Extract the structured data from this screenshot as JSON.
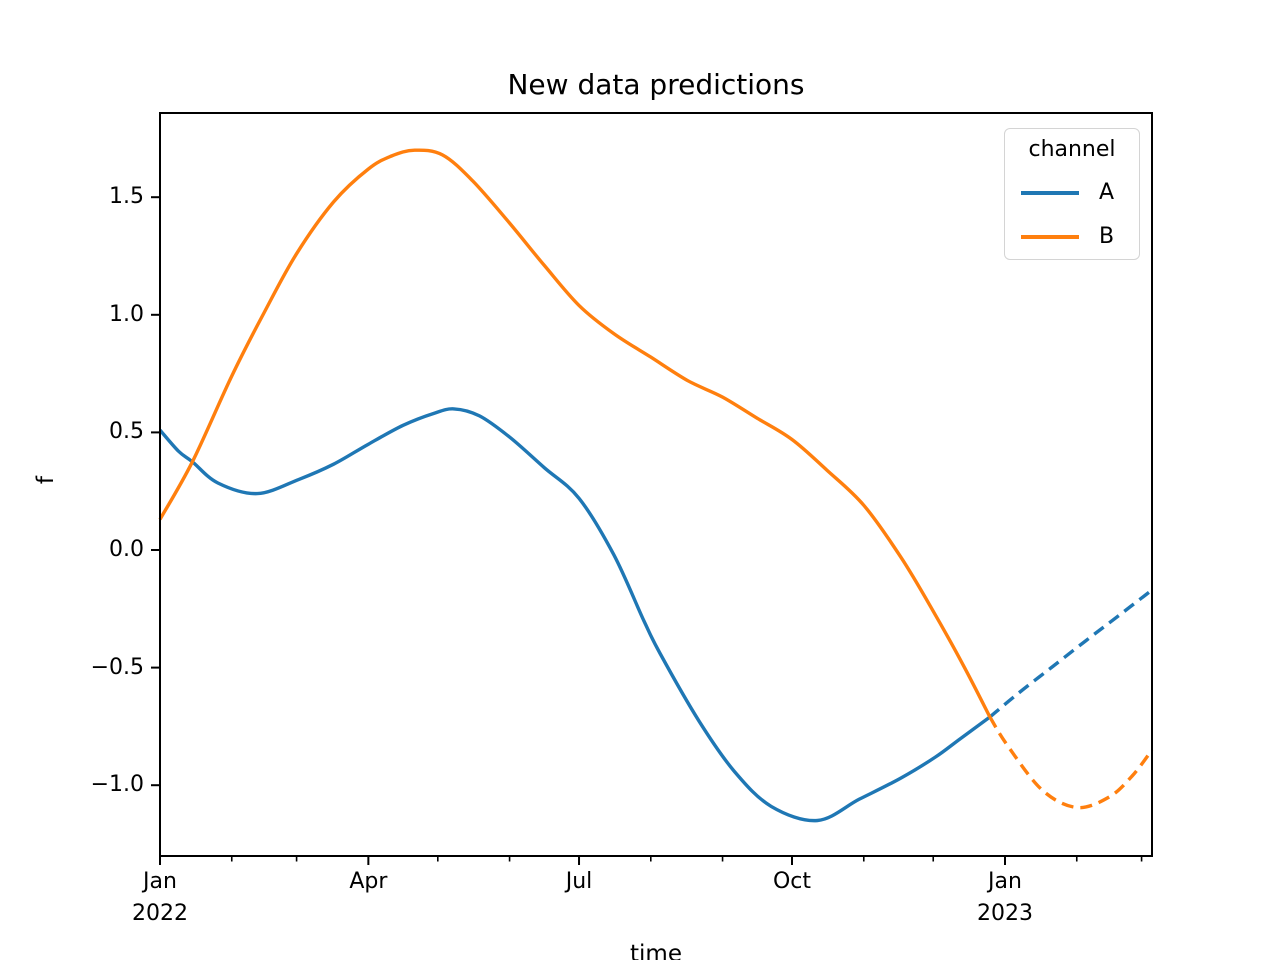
{
  "figure": {
    "title": "New data predictions",
    "xlabel": "time",
    "ylabel": "f",
    "background_color": "#ffffff",
    "spine_color": "#000000"
  },
  "legend": {
    "title": "channel",
    "entries": [
      {
        "label": "A",
        "color": "#1f77b4",
        "line_style": "solid"
      },
      {
        "label": "B",
        "color": "#ff7f0e",
        "line_style": "solid"
      }
    ],
    "position": "upper right"
  },
  "chart_data": {
    "type": "line",
    "title": "New data predictions",
    "xlabel": "time",
    "ylabel": "f",
    "grid": false,
    "legend_title": "channel",
    "legend_entries": [
      "A",
      "B"
    ],
    "legend_position": "upper right",
    "x_unit": "days since Jan 1 2022",
    "xlim": [
      0,
      428.5
    ],
    "ylim": [
      -1.301,
      1.858
    ],
    "y_ticks": [
      {
        "value": 1.5,
        "label": "1.5"
      },
      {
        "value": 1.0,
        "label": "1.0"
      },
      {
        "value": 0.5,
        "label": "0.5"
      },
      {
        "value": 0.0,
        "label": "0.0"
      },
      {
        "value": -0.5,
        "label": "−0.5"
      },
      {
        "value": -1.0,
        "label": "−1.0"
      }
    ],
    "x_ticks_major": [
      {
        "day": 0,
        "label": "Jan\n2022"
      },
      {
        "day": 90,
        "label": "Apr"
      },
      {
        "day": 181,
        "label": "Jul"
      },
      {
        "day": 273,
        "label": "Oct"
      },
      {
        "day": 365,
        "label": "Jan\n2023"
      }
    ],
    "x_ticks_minor": [
      31,
      59,
      120,
      151,
      212,
      243,
      304,
      334,
      396,
      424
    ],
    "series": [
      {
        "name": "A observed",
        "channel": "A",
        "color": "#1f77b4",
        "line_style": "solid",
        "segment": "observed",
        "points": [
          [
            0,
            0.51
          ],
          [
            8,
            0.42
          ],
          [
            14,
            0.375
          ],
          [
            25,
            0.285
          ],
          [
            42,
            0.24
          ],
          [
            60,
            0.3
          ],
          [
            75,
            0.365
          ],
          [
            90,
            0.45
          ],
          [
            105,
            0.53
          ],
          [
            118,
            0.58
          ],
          [
            127,
            0.6
          ],
          [
            138,
            0.57
          ],
          [
            151,
            0.48
          ],
          [
            166,
            0.35
          ],
          [
            181,
            0.22
          ],
          [
            196,
            -0.02
          ],
          [
            209,
            -0.3
          ],
          [
            216,
            -0.44
          ],
          [
            233,
            -0.73
          ],
          [
            248,
            -0.94
          ],
          [
            264,
            -1.09
          ],
          [
            284,
            -1.15
          ],
          [
            302,
            -1.06
          ],
          [
            320,
            -0.97
          ],
          [
            335,
            -0.88
          ],
          [
            346,
            -0.8
          ],
          [
            358.5,
            -0.71
          ]
        ]
      },
      {
        "name": "A predicted",
        "channel": "A",
        "color": "#1f77b4",
        "line_style": "dashed",
        "segment": "predicted",
        "points": [
          [
            358.5,
            -0.71
          ],
          [
            370,
            -0.615
          ],
          [
            385,
            -0.5
          ],
          [
            400,
            -0.385
          ],
          [
            414,
            -0.28
          ],
          [
            428.5,
            -0.17
          ]
        ]
      },
      {
        "name": "B observed",
        "channel": "B",
        "color": "#ff7f0e",
        "line_style": "solid",
        "segment": "observed",
        "points": [
          [
            0,
            0.13
          ],
          [
            14,
            0.375
          ],
          [
            31,
            0.74
          ],
          [
            45,
            1.01
          ],
          [
            59,
            1.26
          ],
          [
            75,
            1.48
          ],
          [
            90,
            1.62
          ],
          [
            100,
            1.675
          ],
          [
            110,
            1.7
          ],
          [
            122,
            1.68
          ],
          [
            135,
            1.57
          ],
          [
            151,
            1.39
          ],
          [
            166,
            1.21
          ],
          [
            181,
            1.04
          ],
          [
            196,
            0.92
          ],
          [
            212,
            0.82
          ],
          [
            228,
            0.72
          ],
          [
            243,
            0.65
          ],
          [
            258,
            0.56
          ],
          [
            273,
            0.47
          ],
          [
            288,
            0.34
          ],
          [
            304,
            0.19
          ],
          [
            320,
            -0.03
          ],
          [
            334,
            -0.26
          ],
          [
            347,
            -0.49
          ],
          [
            358.5,
            -0.71
          ]
        ]
      },
      {
        "name": "B predicted",
        "channel": "B",
        "color": "#ff7f0e",
        "line_style": "dashed",
        "segment": "predicted",
        "points": [
          [
            358.5,
            -0.71
          ],
          [
            366,
            -0.83
          ],
          [
            381,
            -1.02
          ],
          [
            396,
            -1.095
          ],
          [
            410,
            -1.05
          ],
          [
            420,
            -0.96
          ],
          [
            428.5,
            -0.85
          ]
        ]
      }
    ]
  }
}
